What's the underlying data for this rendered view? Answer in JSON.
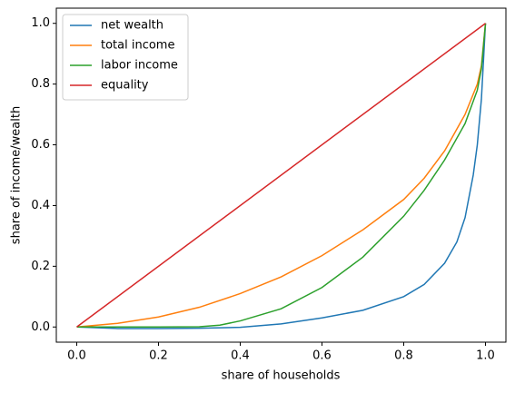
{
  "chart_data": {
    "type": "line",
    "xlabel": "share of households",
    "ylabel": "share of income/wealth",
    "xlim": [
      -0.05,
      1.05
    ],
    "ylim": [
      -0.05,
      1.05
    ],
    "xticks": [
      {
        "value": 0,
        "label": "0.0"
      },
      0.2,
      0.4,
      0.6,
      0.8,
      {
        "value": 1,
        "label": "1.0"
      }
    ],
    "yticks": [
      {
        "value": 0,
        "label": "0.0"
      },
      0.2,
      0.4,
      0.6,
      0.8,
      {
        "value": 1,
        "label": "1.0"
      }
    ],
    "legend": "upper left",
    "series": [
      {
        "name": "net wealth",
        "color": "#1f77b4",
        "x": [
          0,
          0.1,
          0.2,
          0.3,
          0.4,
          0.5,
          0.6,
          0.7,
          0.8,
          0.85,
          0.9,
          0.93,
          0.95,
          0.97,
          0.98,
          0.99,
          1
        ],
        "values": [
          0,
          -0.005,
          -0.005,
          -0.004,
          -0.001,
          0.01,
          0.03,
          0.055,
          0.1,
          0.14,
          0.21,
          0.28,
          0.36,
          0.5,
          0.6,
          0.75,
          1
        ]
      },
      {
        "name": "total income",
        "color": "#ff7f0e",
        "x": [
          0,
          0.1,
          0.2,
          0.3,
          0.4,
          0.5,
          0.6,
          0.7,
          0.8,
          0.85,
          0.9,
          0.95,
          0.98,
          0.99,
          1
        ],
        "values": [
          0,
          0.012,
          0.033,
          0.065,
          0.11,
          0.165,
          0.235,
          0.32,
          0.42,
          0.49,
          0.58,
          0.7,
          0.8,
          0.86,
          1
        ]
      },
      {
        "name": "labor income",
        "color": "#2ca02c",
        "x": [
          0,
          0.1,
          0.2,
          0.3,
          0.35,
          0.4,
          0.5,
          0.6,
          0.7,
          0.8,
          0.85,
          0.9,
          0.95,
          0.98,
          0.99,
          1
        ],
        "values": [
          0,
          0,
          0,
          0.001,
          0.006,
          0.02,
          0.06,
          0.13,
          0.23,
          0.365,
          0.45,
          0.55,
          0.67,
          0.78,
          0.85,
          1
        ]
      },
      {
        "name": "equality",
        "color": "#d62728",
        "x": [
          0,
          1
        ],
        "values": [
          0,
          1
        ]
      }
    ]
  }
}
